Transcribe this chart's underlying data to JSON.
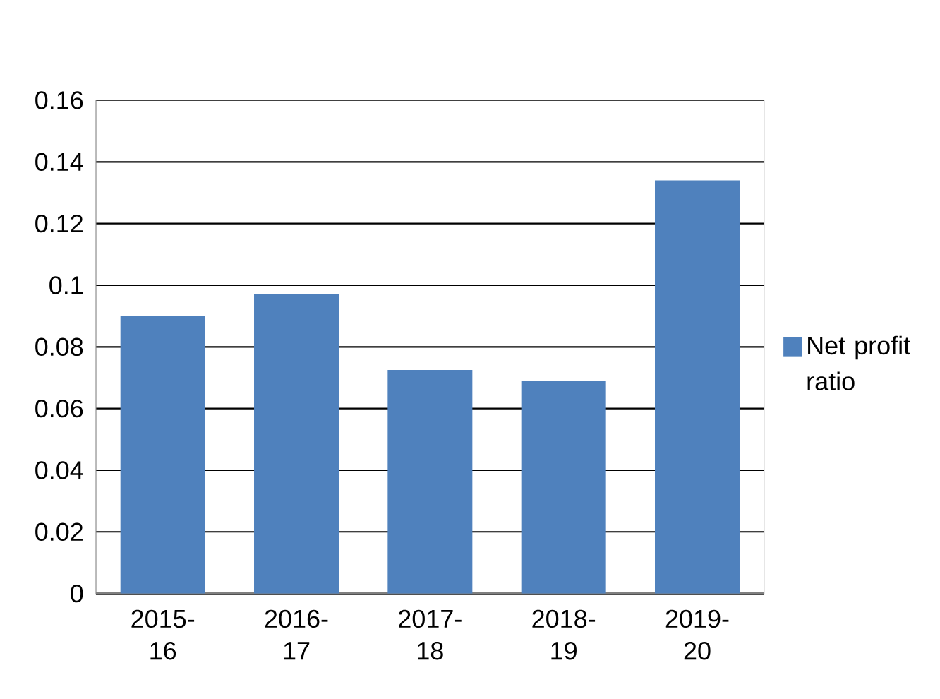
{
  "chart_data": {
    "type": "bar",
    "categories": [
      "2015-16",
      "2016-17",
      "2017-18",
      "2018-19",
      "2019-20"
    ],
    "series": [
      {
        "name": "Net profit ratio",
        "color": "#4f81bd",
        "values": [
          0.09,
          0.097,
          0.0725,
          0.069,
          0.134
        ]
      }
    ],
    "ylim": [
      0,
      0.16
    ],
    "yticks": [
      0,
      0.02,
      0.04,
      0.06,
      0.08,
      0.1,
      0.12,
      0.14,
      0.16
    ],
    "grid": "y",
    "legend": "right"
  }
}
